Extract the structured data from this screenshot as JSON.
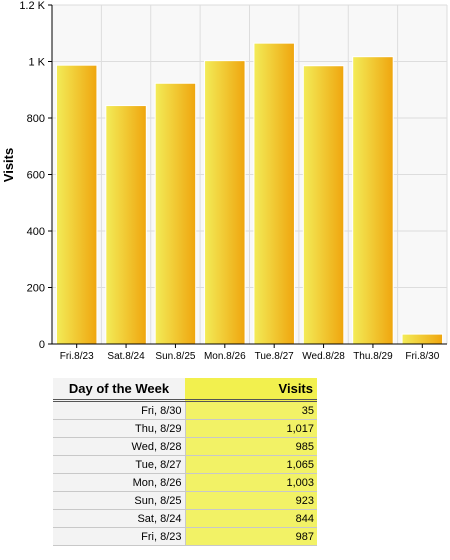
{
  "chart_data": {
    "type": "bar",
    "categories": [
      "Fri.8/23",
      "Sat.8/24",
      "Sun.8/25",
      "Mon.8/26",
      "Tue.8/27",
      "Wed.8/28",
      "Thu.8/29",
      "Fri.8/30"
    ],
    "values": [
      987,
      844,
      923,
      1003,
      1065,
      985,
      1017,
      35
    ],
    "ylabel": "Visits",
    "ylim": [
      0,
      1200
    ],
    "yticks": [
      0,
      200,
      400,
      600,
      800,
      1000,
      1200
    ],
    "ytick_labels": [
      "0",
      "200",
      "400",
      "600",
      "800",
      "1 K",
      "1.2 K"
    ],
    "grid": true,
    "colors": {
      "bar_light": "#f3ec58",
      "bar_dark": "#efa50e",
      "plot_bg": "#f8f8f8",
      "grid": "#dddddd"
    }
  },
  "table": {
    "headers": {
      "day": "Day of the Week",
      "visits": "Visits"
    },
    "rows": [
      {
        "day": "Fri, 8/30",
        "visits": "35"
      },
      {
        "day": "Thu, 8/29",
        "visits": "1,017"
      },
      {
        "day": "Wed, 8/28",
        "visits": "985"
      },
      {
        "day": "Tue, 8/27",
        "visits": "1,065"
      },
      {
        "day": "Mon, 8/26",
        "visits": "1,003"
      },
      {
        "day": "Sun, 8/25",
        "visits": "923"
      },
      {
        "day": "Sat, 8/24",
        "visits": "844"
      },
      {
        "day": "Fri, 8/23",
        "visits": "987"
      }
    ]
  }
}
